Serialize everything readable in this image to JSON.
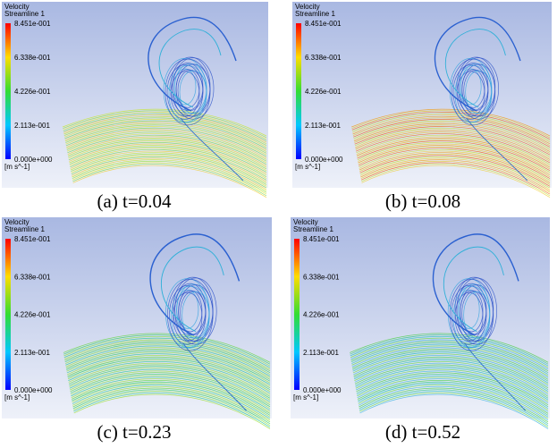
{
  "panels": [
    {
      "legend_title": "Velocity",
      "legend_subtitle": "Streamline 1",
      "legend_ticks": [
        "8.451e-001",
        "6.338e-001",
        "4.226e-001",
        "2.113e-001",
        "0.000e+000"
      ],
      "legend_unit": "[m s^-1]",
      "caption": "(a) t=0.04"
    },
    {
      "legend_title": "Velocity",
      "legend_subtitle": "Streamline 1",
      "legend_ticks": [
        "8.451e-001",
        "6.338e-001",
        "4.226e-001",
        "2.113e-001",
        "0.000e+000"
      ],
      "legend_unit": "[m s^-1]",
      "caption": "(b) t=0.08"
    },
    {
      "legend_title": "Velocity",
      "legend_subtitle": "Streamline 1",
      "legend_ticks": [
        "8.451e-001",
        "6.338e-001",
        "4.226e-001",
        "2.113e-001",
        "0.000e+000"
      ],
      "legend_unit": "[m s^-1]",
      "caption": "(c) t=0.23"
    },
    {
      "legend_title": "Velocity",
      "legend_subtitle": "Streamline 1",
      "legend_ticks": [
        "8.451e-001",
        "6.338e-001",
        "4.226e-001",
        "2.113e-001",
        "0.000e+000"
      ],
      "legend_unit": "[m s^-1]",
      "caption": "(d) t=0.52"
    }
  ]
}
